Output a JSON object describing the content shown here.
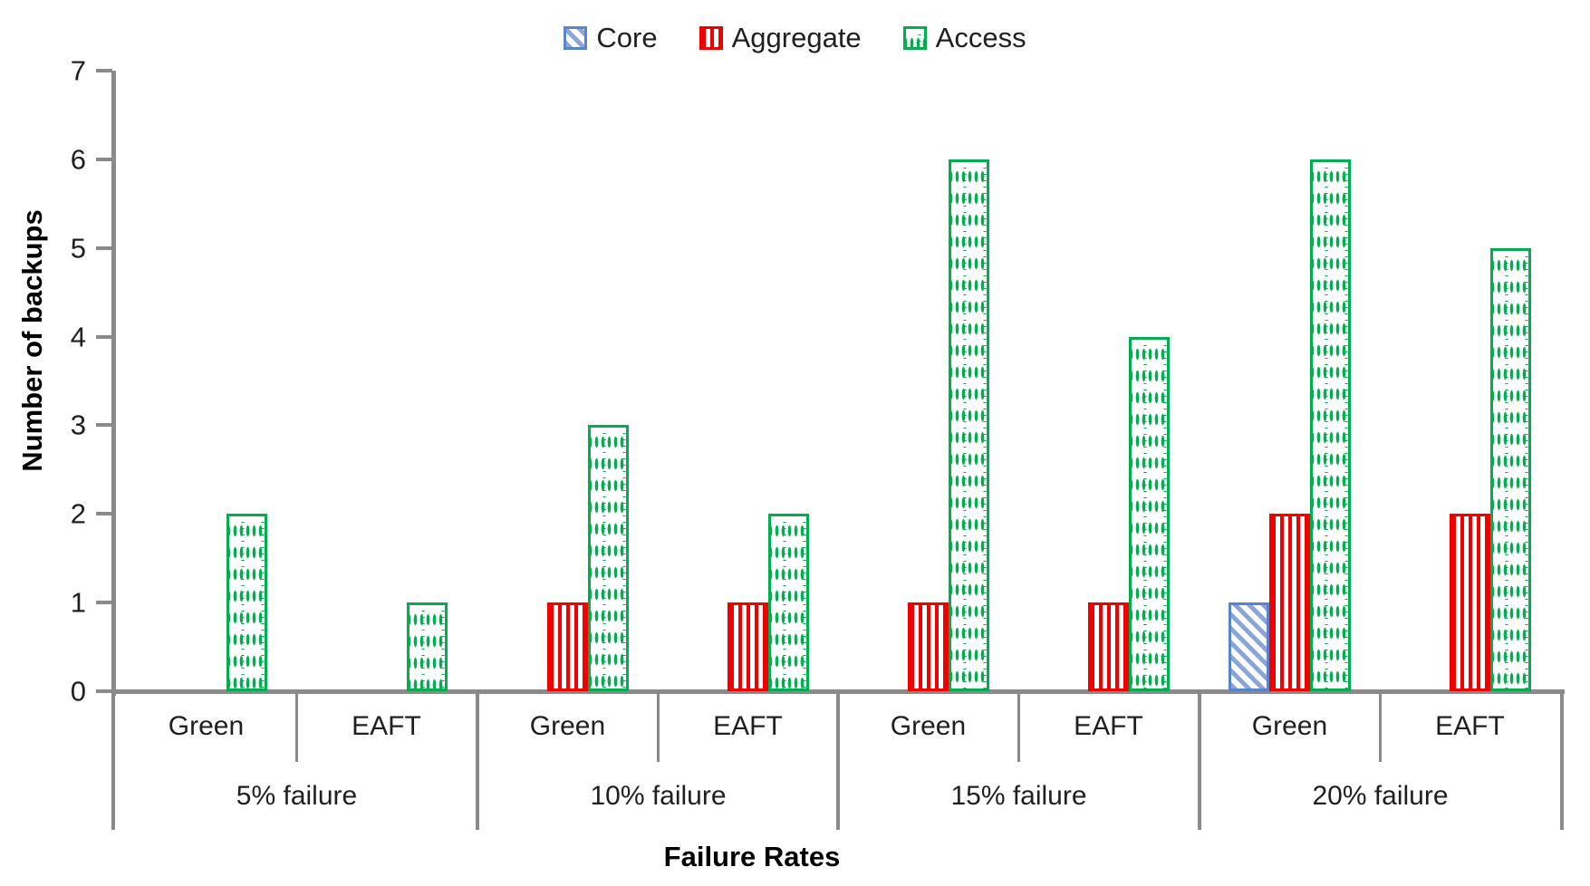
{
  "chart_data": {
    "type": "bar",
    "title": "",
    "ylabel": "Number of backups",
    "xlabel": "Failure Rates",
    "ylim": [
      0,
      7
    ],
    "ytick_labels": [
      "0",
      "1",
      "2",
      "3",
      "4",
      "5",
      "6",
      "7"
    ],
    "legend_position": "top-center",
    "grid": false,
    "groups": [
      "5% failure",
      "10% failure",
      "15% failure",
      "20% failure"
    ],
    "subgroups": [
      "Green",
      "EAFT"
    ],
    "categories": [
      {
        "group": "5% failure",
        "sub": "Green"
      },
      {
        "group": "5% failure",
        "sub": "EAFT"
      },
      {
        "group": "10% failure",
        "sub": "Green"
      },
      {
        "group": "10% failure",
        "sub": "EAFT"
      },
      {
        "group": "15% failure",
        "sub": "Green"
      },
      {
        "group": "15% failure",
        "sub": "EAFT"
      },
      {
        "group": "20% failure",
        "sub": "Green"
      },
      {
        "group": "20% failure",
        "sub": "EAFT"
      }
    ],
    "series": [
      {
        "name": "Core",
        "pattern": "diagonal-hatch",
        "color": "#5b84c8",
        "values": [
          0,
          0,
          0,
          0,
          0,
          0,
          1,
          0
        ]
      },
      {
        "name": "Aggregate",
        "pattern": "vertical-stripes",
        "color": "#f10000",
        "values": [
          0,
          0,
          1,
          1,
          1,
          1,
          2,
          2
        ]
      },
      {
        "name": "Access",
        "pattern": "dotted-grid",
        "color": "#00ae50",
        "values": [
          2,
          1,
          3,
          2,
          6,
          4,
          6,
          5
        ]
      }
    ],
    "axis_color": "#8a8a8a",
    "text_color": "#1f1f1f"
  }
}
